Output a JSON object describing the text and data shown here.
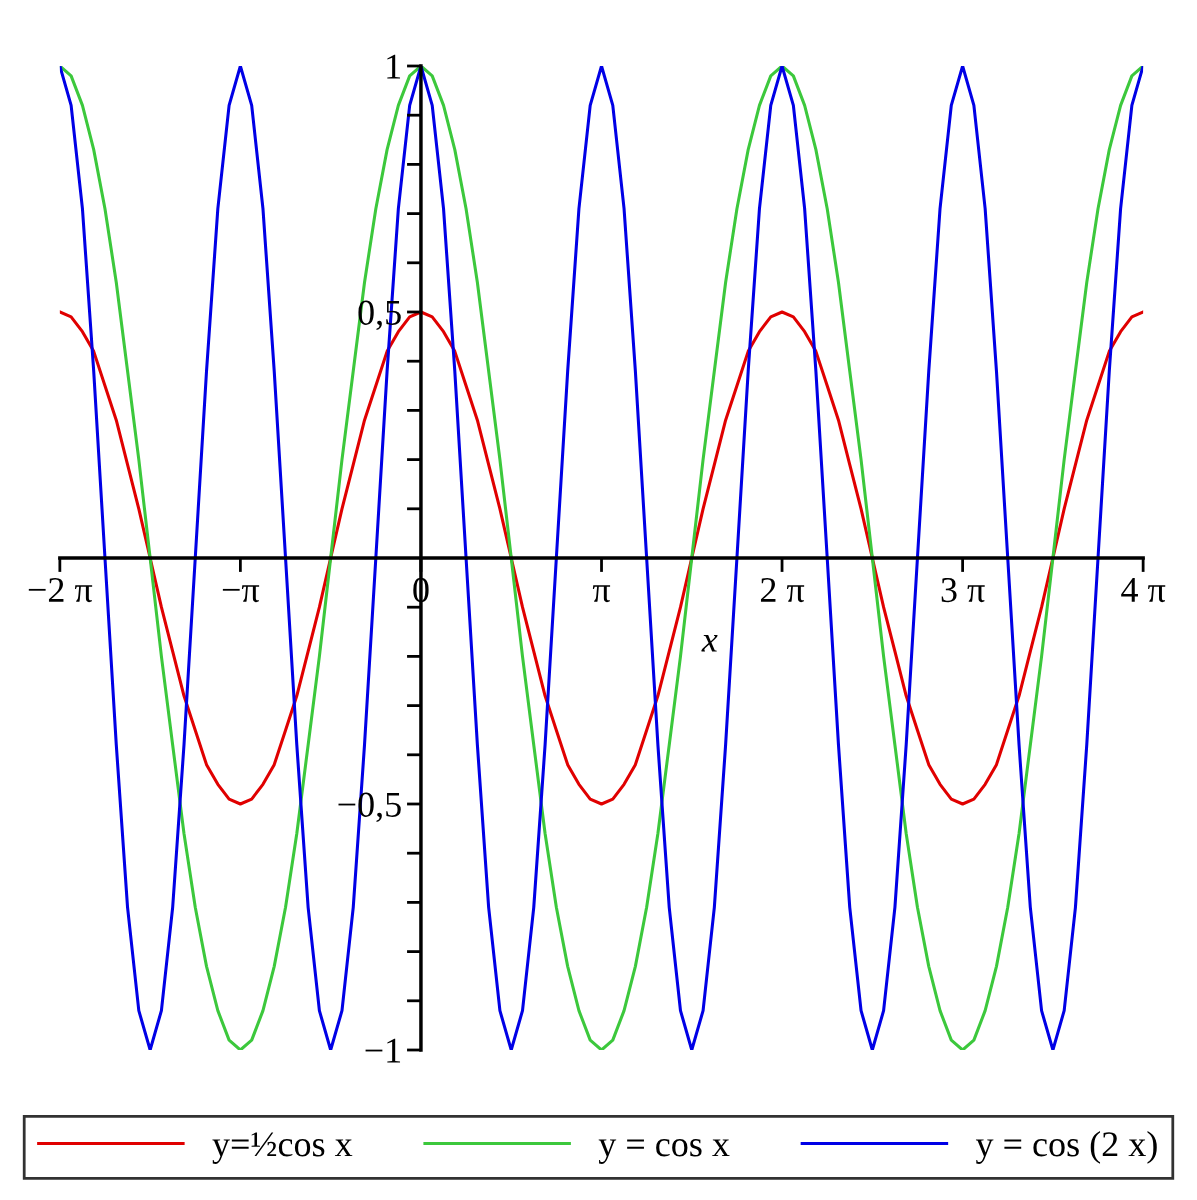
{
  "chart_data": {
    "type": "line",
    "xlabel": "x",
    "x": [
      -6.283,
      -6.087,
      -5.89,
      -5.694,
      -5.498,
      -5.301,
      -5.105,
      -4.909,
      -4.712,
      -4.516,
      -4.32,
      -4.123,
      -3.927,
      -3.731,
      -3.534,
      -3.338,
      -3.142,
      -2.945,
      -2.749,
      -2.553,
      -2.356,
      -2.16,
      -1.963,
      -1.767,
      -1.571,
      -1.374,
      -1.178,
      -0.982,
      -0.785,
      -0.589,
      -0.393,
      -0.196,
      0,
      0.196,
      0.393,
      0.589,
      0.785,
      0.982,
      1.178,
      1.374,
      1.571,
      1.767,
      1.963,
      2.16,
      2.356,
      2.553,
      2.749,
      2.945,
      3.142,
      3.338,
      3.534,
      3.731,
      3.927,
      4.123,
      4.32,
      4.516,
      4.712,
      4.909,
      5.105,
      5.301,
      5.498,
      5.694,
      5.89,
      6.087,
      6.283,
      6.48,
      6.676,
      6.872,
      7.069,
      7.265,
      7.461,
      7.658,
      7.854,
      8.05,
      8.247,
      8.443,
      8.639,
      8.836,
      9.032,
      9.228,
      9.425,
      9.621,
      9.817,
      10.014,
      10.21,
      10.407,
      10.603,
      10.799,
      10.996,
      11.192,
      11.388,
      11.585,
      11.781,
      11.977,
      12.174,
      12.37,
      12.566
    ],
    "series": [
      {
        "name": "y=½cos x",
        "color": "#e00000",
        "values": [
          0.5,
          0.49,
          0.46,
          0.42,
          0.35,
          0.28,
          0.19,
          0.1,
          0,
          -0.1,
          -0.19,
          -0.28,
          -0.35,
          -0.42,
          -0.46,
          -0.49,
          -0.5,
          -0.49,
          -0.46,
          -0.42,
          -0.35,
          -0.28,
          -0.19,
          -0.1,
          0,
          0.1,
          0.19,
          0.28,
          0.35,
          0.42,
          0.46,
          0.49,
          0.5,
          0.49,
          0.46,
          0.42,
          0.35,
          0.28,
          0.19,
          0.1,
          0,
          -0.1,
          -0.19,
          -0.28,
          -0.35,
          -0.42,
          -0.46,
          -0.49,
          -0.5,
          -0.49,
          -0.46,
          -0.42,
          -0.35,
          -0.28,
          -0.19,
          -0.1,
          0,
          0.1,
          0.19,
          0.28,
          0.35,
          0.42,
          0.46,
          0.49,
          0.5,
          0.49,
          0.46,
          0.42,
          0.35,
          0.28,
          0.19,
          0.1,
          0,
          -0.1,
          -0.19,
          -0.28,
          -0.35,
          -0.42,
          -0.46,
          -0.49,
          -0.5,
          -0.49,
          -0.46,
          -0.42,
          -0.35,
          -0.28,
          -0.19,
          -0.1,
          0,
          0.1,
          0.19,
          0.28,
          0.35,
          0.42,
          0.46,
          0.49,
          0.5
        ]
      },
      {
        "name": "y = cos x",
        "color": "#3cc83c",
        "values": [
          1,
          0.98,
          0.92,
          0.83,
          0.71,
          0.56,
          0.38,
          0.2,
          0,
          -0.2,
          -0.38,
          -0.56,
          -0.71,
          -0.83,
          -0.92,
          -0.98,
          -1,
          -0.98,
          -0.92,
          -0.83,
          -0.71,
          -0.56,
          -0.38,
          -0.2,
          0,
          0.2,
          0.38,
          0.56,
          0.71,
          0.83,
          0.92,
          0.98,
          1,
          0.98,
          0.92,
          0.83,
          0.71,
          0.56,
          0.38,
          0.2,
          0,
          -0.2,
          -0.38,
          -0.56,
          -0.71,
          -0.83,
          -0.92,
          -0.98,
          -1,
          -0.98,
          -0.92,
          -0.83,
          -0.71,
          -0.56,
          -0.38,
          -0.2,
          0,
          0.2,
          0.38,
          0.56,
          0.71,
          0.83,
          0.92,
          0.98,
          1,
          0.98,
          0.92,
          0.83,
          0.71,
          0.56,
          0.38,
          0.2,
          0,
          -0.2,
          -0.38,
          -0.56,
          -0.71,
          -0.83,
          -0.92,
          -0.98,
          -1,
          -0.98,
          -0.92,
          -0.83,
          -0.71,
          -0.56,
          -0.38,
          -0.2,
          0,
          0.2,
          0.38,
          0.56,
          0.71,
          0.83,
          0.92,
          0.98,
          1
        ]
      },
      {
        "name": "y = cos (2 x)",
        "color": "#0000e6",
        "values": [
          1,
          0.92,
          0.71,
          0.38,
          0,
          -0.38,
          -0.71,
          -0.92,
          -1,
          -0.92,
          -0.71,
          -0.38,
          0,
          0.38,
          0.71,
          0.92,
          1,
          0.92,
          0.71,
          0.38,
          0,
          -0.38,
          -0.71,
          -0.92,
          -1,
          -0.92,
          -0.71,
          -0.38,
          0,
          0.38,
          0.71,
          0.92,
          1,
          0.92,
          0.71,
          0.38,
          0,
          -0.38,
          -0.71,
          -0.92,
          -1,
          -0.92,
          -0.71,
          -0.38,
          0,
          0.38,
          0.71,
          0.92,
          1,
          0.92,
          0.71,
          0.38,
          0,
          -0.38,
          -0.71,
          -0.92,
          -1,
          -0.92,
          -0.71,
          -0.38,
          0,
          0.38,
          0.71,
          0.92,
          1,
          0.92,
          0.71,
          0.38,
          0,
          -0.38,
          -0.71,
          -0.92,
          -1,
          -0.92,
          -0.71,
          -0.38,
          0,
          0.38,
          0.71,
          0.92,
          1,
          0.92,
          0.71,
          0.38,
          0,
          -0.38,
          -0.71,
          -0.92,
          -1,
          -0.92,
          -0.71,
          -0.38,
          0,
          0.38,
          0.71,
          0.92,
          1
        ]
      }
    ],
    "xlim": [
      -6.283,
      12.566
    ],
    "xticks": [
      {
        "value": -6.283,
        "label": "−2 π"
      },
      {
        "value": -3.142,
        "label": "−π"
      },
      {
        "value": 0,
        "label": "0"
      },
      {
        "value": 3.142,
        "label": "π"
      },
      {
        "value": 6.283,
        "label": "2 π"
      },
      {
        "value": 9.425,
        "label": "3 π"
      },
      {
        "value": 12.566,
        "label": "4 π"
      }
    ],
    "ylim": [
      -1,
      1
    ],
    "yticks": [
      {
        "value": -1,
        "label": "−1"
      },
      {
        "value": -0.9,
        "label": null
      },
      {
        "value": -0.8,
        "label": null
      },
      {
        "value": -0.7,
        "label": null
      },
      {
        "value": -0.6,
        "label": null
      },
      {
        "value": -0.5,
        "label": "−0,5"
      },
      {
        "value": -0.4,
        "label": null
      },
      {
        "value": -0.3,
        "label": null
      },
      {
        "value": -0.2,
        "label": null
      },
      {
        "value": -0.1,
        "label": null
      },
      {
        "value": 0.1,
        "label": null
      },
      {
        "value": 0.2,
        "label": null
      },
      {
        "value": 0.3,
        "label": null
      },
      {
        "value": 0.4,
        "label": null
      },
      {
        "value": 0.5,
        "label": "0,5"
      },
      {
        "value": 0.6,
        "label": null
      },
      {
        "value": 0.7,
        "label": null
      },
      {
        "value": 0.8,
        "label": null
      },
      {
        "value": 0.9,
        "label": null
      },
      {
        "value": 1,
        "label": "1"
      }
    ],
    "legend": "bottom",
    "marker": "none",
    "line_style": "solid"
  }
}
